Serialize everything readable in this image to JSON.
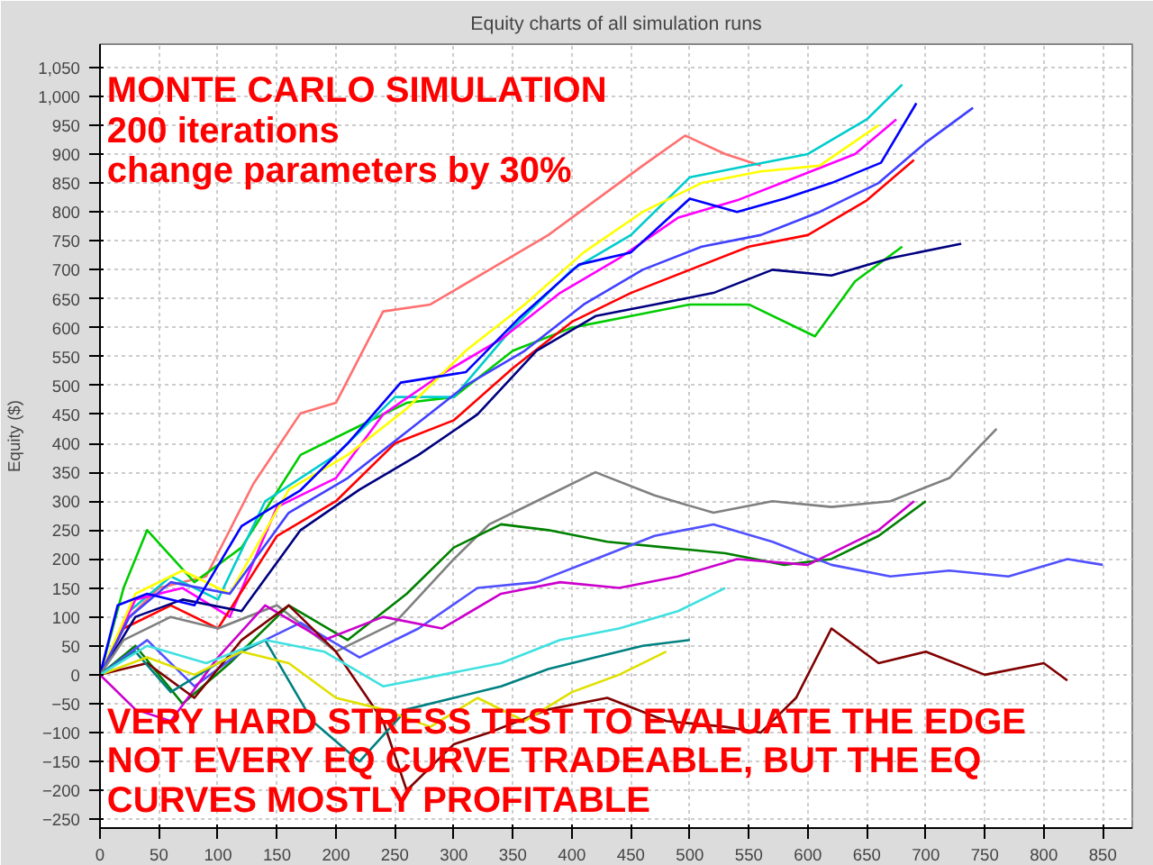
{
  "chart_data": {
    "type": "line",
    "title": "Equity charts of all simulation runs",
    "ylabel": "Equity ($)",
    "xlim": [
      0,
      875
    ],
    "ylim": [
      -265,
      1090
    ],
    "xticks": [
      0,
      50,
      100,
      150,
      200,
      250,
      300,
      350,
      400,
      450,
      500,
      550,
      600,
      650,
      700,
      750,
      800,
      850
    ],
    "yticks": [
      -250,
      -200,
      -150,
      -100,
      -50,
      0,
      50,
      100,
      150,
      200,
      250,
      300,
      350,
      400,
      450,
      500,
      550,
      600,
      650,
      700,
      750,
      800,
      850,
      900,
      950,
      {
        "value": 1000,
        "label": "1,000"
      },
      {
        "value": 1050,
        "label": "1,050"
      }
    ],
    "grid": true,
    "line_style": "solid",
    "annotations": [
      "MONTE CARLO SIMULATION",
      "200 iterations",
      "change parameters by 30%",
      "VERY HARD STRESS TEST TO EVALUATE THE EDGE",
      "NOT EVERY EQ CURVE TRADEABLE, BUT THE EQ",
      "CURVES MOSTLY PROFITABLE"
    ],
    "series": [
      {
        "color": "#ff7070",
        "x": [
          0,
          20,
          50,
          90,
          130,
          170,
          200,
          240,
          280,
          330,
          380,
          420,
          460,
          496,
          530,
          560
        ],
        "values": [
          0,
          90,
          150,
          170,
          330,
          452,
          470,
          628,
          640,
          700,
          760,
          820,
          880,
          932,
          900,
          880
        ]
      },
      {
        "color": "#00cc00",
        "x": [
          0,
          20,
          40,
          80,
          120,
          170,
          220,
          260,
          300,
          350,
          400,
          450,
          500,
          550,
          606,
          640,
          680
        ],
        "values": [
          0,
          150,
          250,
          160,
          220,
          380,
          430,
          470,
          480,
          560,
          600,
          620,
          640,
          640,
          585,
          680,
          740
        ]
      },
      {
        "color": "#00cccc",
        "x": [
          0,
          25,
          60,
          100,
          140,
          200,
          250,
          300,
          350,
          400,
          450,
          500,
          550,
          600,
          650,
          680
        ],
        "values": [
          0,
          110,
          170,
          130,
          300,
          380,
          480,
          480,
          600,
          700,
          760,
          860,
          880,
          900,
          960,
          1020
        ]
      },
      {
        "color": "#ff00ff",
        "x": [
          0,
          30,
          70,
          110,
          150,
          200,
          240,
          290,
          340,
          390,
          440,
          490,
          540,
          590,
          640,
          675
        ],
        "values": [
          0,
          130,
          150,
          100,
          290,
          340,
          450,
          520,
          580,
          660,
          720,
          790,
          820,
          860,
          900,
          960
        ]
      },
      {
        "color": "#ffff00",
        "x": [
          0,
          30,
          70,
          110,
          160,
          210,
          260,
          310,
          360,
          410,
          460,
          510,
          560,
          610,
          660
        ],
        "values": [
          0,
          140,
          180,
          140,
          320,
          380,
          460,
          560,
          640,
          730,
          800,
          850,
          870,
          880,
          950
        ]
      },
      {
        "color": "#ff0000",
        "x": [
          0,
          20,
          60,
          100,
          150,
          200,
          250,
          300,
          350,
          400,
          450,
          500,
          550,
          600,
          650,
          690
        ],
        "values": [
          0,
          80,
          120,
          80,
          240,
          300,
          400,
          440,
          530,
          610,
          660,
          700,
          740,
          760,
          820,
          890
        ]
      },
      {
        "color": "#000080",
        "x": [
          0,
          30,
          70,
          120,
          170,
          220,
          270,
          320,
          370,
          420,
          470,
          520,
          570,
          620,
          670,
          730
        ],
        "values": [
          0,
          100,
          130,
          110,
          250,
          320,
          380,
          450,
          560,
          620,
          640,
          660,
          700,
          690,
          720,
          745
        ]
      },
      {
        "color": "#4040ff",
        "x": [
          0,
          25,
          60,
          110,
          160,
          210,
          260,
          310,
          360,
          410,
          460,
          510,
          560,
          610,
          660,
          700,
          740
        ],
        "values": [
          0,
          100,
          160,
          140,
          280,
          340,
          420,
          500,
          560,
          640,
          700,
          740,
          760,
          800,
          850,
          920,
          980
        ]
      },
      {
        "color": "#0000ff",
        "x": [
          0,
          15,
          40,
          80,
          120,
          170,
          210,
          255,
          310,
          355,
          406,
          450,
          500,
          540,
          580,
          620,
          662,
          692
        ],
        "values": [
          0,
          120,
          140,
          120,
          257,
          319,
          400,
          505,
          523,
          616,
          709,
          730,
          823,
          800,
          823,
          850,
          885,
          988
        ]
      },
      {
        "color": "#808080",
        "x": [
          0,
          20,
          60,
          100,
          150,
          200,
          250,
          300,
          330,
          370,
          420,
          470,
          520,
          570,
          620,
          670,
          720,
          760
        ],
        "values": [
          0,
          60,
          100,
          80,
          120,
          40,
          90,
          200,
          260,
          300,
          350,
          310,
          280,
          300,
          290,
          300,
          340,
          425
        ]
      },
      {
        "color": "#008000",
        "x": [
          0,
          30,
          70,
          110,
          160,
          210,
          260,
          300,
          340,
          380,
          430,
          480,
          530,
          580,
          620,
          660,
          700
        ],
        "values": [
          0,
          50,
          -50,
          20,
          120,
          60,
          140,
          220,
          260,
          250,
          230,
          220,
          210,
          190,
          200,
          240,
          300
        ]
      },
      {
        "color": "#5050ff",
        "x": [
          0,
          40,
          80,
          120,
          170,
          220,
          270,
          320,
          370,
          420,
          470,
          520,
          570,
          620,
          670,
          720,
          770,
          820,
          850
        ],
        "values": [
          0,
          60,
          -20,
          40,
          90,
          30,
          80,
          150,
          160,
          200,
          240,
          260,
          230,
          190,
          170,
          180,
          170,
          200,
          190
        ]
      },
      {
        "color": "#cc00cc",
        "x": [
          0,
          30,
          60,
          100,
          140,
          190,
          240,
          290,
          340,
          390,
          440,
          490,
          540,
          600,
          660,
          690
        ],
        "values": [
          0,
          -60,
          -80,
          30,
          120,
          60,
          100,
          80,
          140,
          160,
          150,
          170,
          200,
          190,
          250,
          300
        ]
      },
      {
        "color": "#800000",
        "x": [
          0,
          40,
          80,
          120,
          160,
          200,
          240,
          260,
          300,
          330,
          380,
          430,
          480,
          530,
          560,
          590,
          620,
          660,
          700,
          750,
          800,
          820
        ],
        "values": [
          0,
          20,
          -40,
          60,
          120,
          40,
          -80,
          -200,
          -120,
          -100,
          -60,
          -40,
          -80,
          -90,
          -100,
          -40,
          80,
          20,
          40,
          0,
          20,
          -10
        ]
      },
      {
        "color": "#008080",
        "x": [
          0,
          30,
          60,
          100,
          140,
          180,
          220,
          260,
          300,
          340,
          380,
          420,
          460,
          500
        ],
        "values": [
          0,
          40,
          -30,
          20,
          60,
          -80,
          -150,
          -60,
          -40,
          -20,
          10,
          30,
          50,
          60
        ]
      },
      {
        "color": "#e0e000",
        "x": [
          0,
          40,
          80,
          120,
          160,
          200,
          240,
          280,
          320,
          360,
          400,
          440,
          480
        ],
        "values": [
          0,
          30,
          0,
          40,
          20,
          -40,
          -60,
          -90,
          -40,
          -80,
          -30,
          0,
          40
        ]
      },
      {
        "color": "#40e0e0",
        "x": [
          0,
          40,
          90,
          140,
          190,
          240,
          290,
          340,
          390,
          440,
          490,
          530
        ],
        "values": [
          0,
          50,
          20,
          60,
          40,
          -20,
          0,
          20,
          60,
          80,
          110,
          150
        ]
      }
    ]
  }
}
